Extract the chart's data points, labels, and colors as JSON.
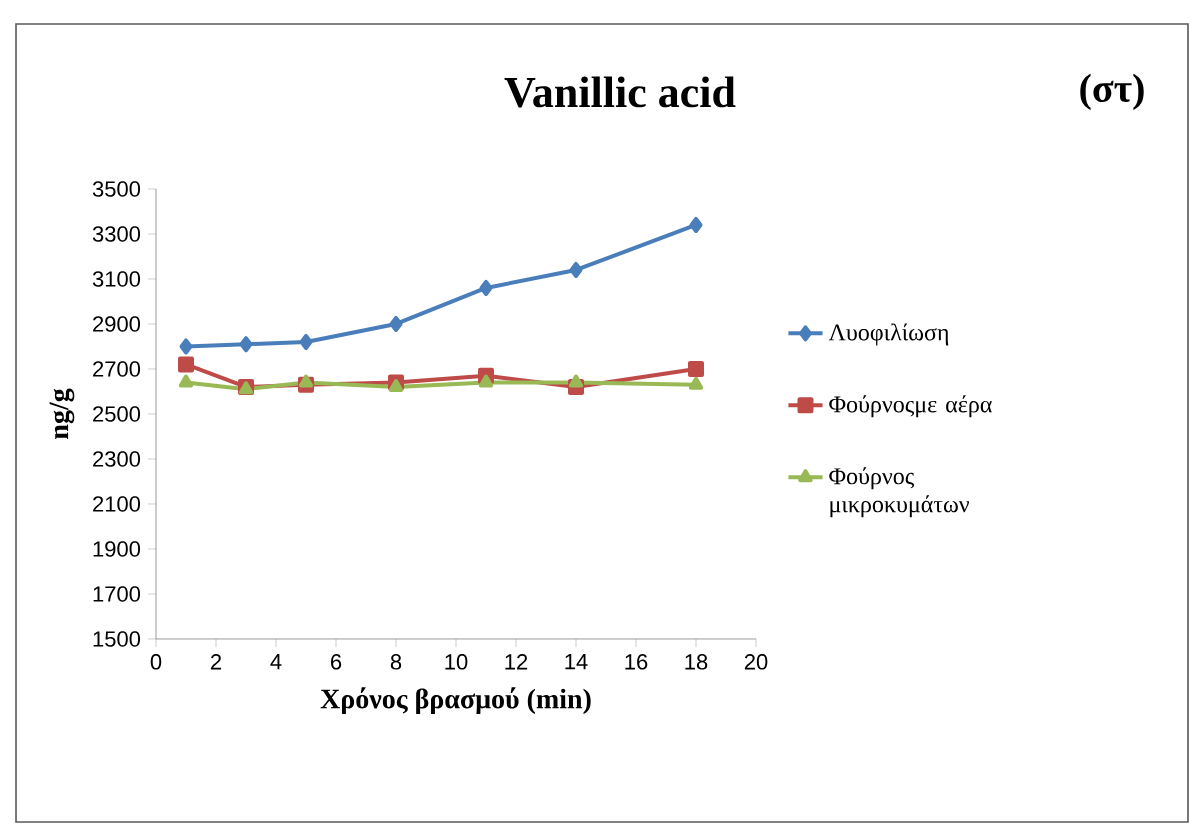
{
  "chart_data": {
    "type": "line",
    "title": "Vanillic acid",
    "annotations": [
      "(στ)"
    ],
    "xlabel": "Χρόνος βρασμού (min)",
    "ylabel": "ng/g",
    "xlim": [
      0,
      20
    ],
    "xticks": [
      0,
      2,
      4,
      6,
      8,
      10,
      12,
      14,
      16,
      18,
      20
    ],
    "ylim": [
      1500,
      3500
    ],
    "yticks": [
      1500,
      1700,
      1900,
      2100,
      2300,
      2500,
      2700,
      2900,
      3100,
      3300,
      3500
    ],
    "grid": false,
    "legend": "right",
    "series": [
      {
        "name": "Λυοφιλίωση",
        "color": "#4a7ebb",
        "marker": "diamond",
        "x": [
          1,
          3,
          5,
          8,
          11,
          14,
          18
        ],
        "values": [
          2800,
          2810,
          2820,
          2900,
          3060,
          3140,
          3340
        ]
      },
      {
        "name": "Φούρνοςμε αέρα",
        "color": "#be4b48",
        "marker": "square",
        "x": [
          1,
          3,
          5,
          8,
          11,
          14,
          18
        ],
        "values": [
          2720,
          2620,
          2630,
          2640,
          2670,
          2620,
          2700
        ]
      },
      {
        "name": "Φούρνος μικροκυμάτων",
        "color": "#98b954",
        "marker": "triangle",
        "x": [
          1,
          3,
          5,
          8,
          11,
          14,
          18
        ],
        "values": [
          2640,
          2610,
          2640,
          2620,
          2640,
          2640,
          2630
        ]
      }
    ]
  }
}
